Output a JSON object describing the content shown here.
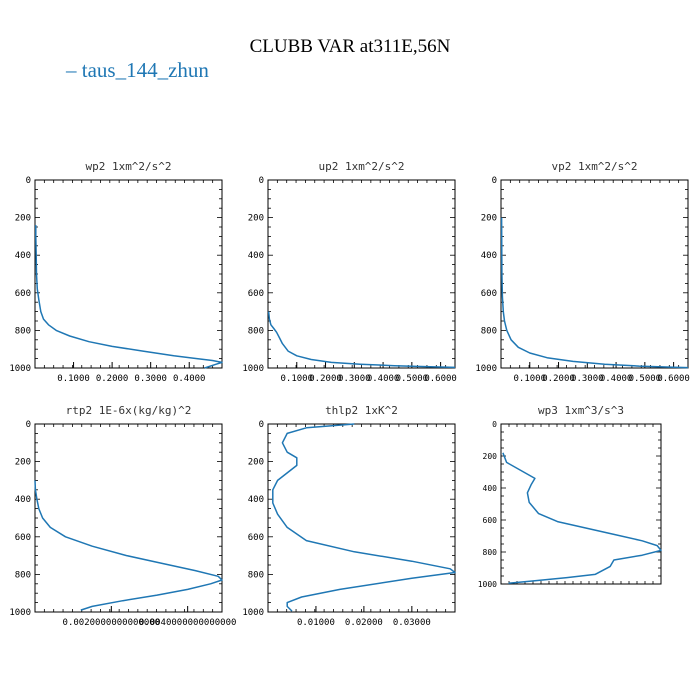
{
  "title": "CLUBB VAR at311E,56N",
  "legend": {
    "symbol": "–",
    "label": "taus_144_zhun"
  },
  "colors": {
    "line": "#1f77b4",
    "axes": "#000000"
  },
  "chart_data": [
    {
      "type": "line",
      "title": "wp2  1xm^2/s^2",
      "series": [
        {
          "name": "taus_144_zhun"
        }
      ],
      "xlim": [
        0.0,
        0.485
      ],
      "ylim": [
        1000,
        0
      ],
      "xticks": [
        0.1,
        0.2,
        0.3,
        0.4
      ],
      "xtick_labels": [
        "0.1000",
        "0.2000",
        "0.3000",
        "0.4000"
      ],
      "yticks": [
        0,
        200,
        400,
        600,
        800,
        1000
      ],
      "ytick_labels": [
        "0",
        "200",
        "400",
        "600",
        "800",
        "1000"
      ],
      "x": [
        0.002,
        0.002,
        0.003,
        0.004,
        0.006,
        0.01,
        0.015,
        0.022,
        0.035,
        0.055,
        0.09,
        0.14,
        0.2,
        0.28,
        0.36,
        0.42,
        0.46,
        0.485,
        0.47,
        0.44
      ],
      "y": [
        240,
        300,
        400,
        500,
        580,
        640,
        700,
        740,
        770,
        800,
        830,
        860,
        885,
        910,
        935,
        950,
        960,
        970,
        980,
        1000
      ]
    },
    {
      "type": "line",
      "title": "up2  1xm^2/s^2",
      "series": [
        {
          "name": "taus_144_zhun"
        }
      ],
      "xlim": [
        0.0,
        0.65
      ],
      "ylim": [
        1000,
        0
      ],
      "xticks": [
        0.1,
        0.2,
        0.3,
        0.4,
        0.5,
        0.6
      ],
      "xtick_labels": [
        "0.1000",
        "0.2000",
        "0.3000",
        "0.4000",
        "0.5000",
        "0.6000"
      ],
      "yticks": [
        0,
        200,
        400,
        600,
        800,
        1000
      ],
      "ytick_labels": [
        "0",
        "200",
        "400",
        "600",
        "800",
        "1000"
      ],
      "x": [
        0.002,
        0.005,
        0.01,
        0.02,
        0.03,
        0.04,
        0.05,
        0.07,
        0.1,
        0.15,
        0.22,
        0.32,
        0.44,
        0.58,
        0.65
      ],
      "y": [
        700,
        740,
        770,
        790,
        810,
        840,
        870,
        910,
        935,
        955,
        970,
        980,
        988,
        994,
        997
      ]
    },
    {
      "type": "line",
      "title": "vp2  1xm^2/s^2",
      "series": [
        {
          "name": "taus_144_zhun"
        }
      ],
      "xlim": [
        0.0,
        0.65
      ],
      "ylim": [
        1000,
        0
      ],
      "xticks": [
        0.1,
        0.2,
        0.3,
        0.4,
        0.5,
        0.6
      ],
      "xtick_labels": [
        "0.1000",
        "0.2000",
        "0.3000",
        "0.4000",
        "0.5000",
        "0.6000"
      ],
      "yticks": [
        0,
        200,
        400,
        600,
        800,
        1000
      ],
      "ytick_labels": [
        "0",
        "200",
        "400",
        "600",
        "800",
        "1000"
      ],
      "x": [
        0.002,
        0.003,
        0.005,
        0.008,
        0.012,
        0.02,
        0.035,
        0.06,
        0.1,
        0.16,
        0.25,
        0.36,
        0.48,
        0.6,
        0.65
      ],
      "y": [
        200,
        500,
        620,
        700,
        750,
        800,
        850,
        890,
        920,
        945,
        965,
        980,
        990,
        996,
        998
      ]
    },
    {
      "type": "line",
      "title": "rtp2  1E-6x(kg/kg)^2",
      "series": [
        {
          "name": "taus_144_zhun"
        }
      ],
      "xlim": [
        0.0,
        4.9e-06
      ],
      "ylim": [
        1000,
        0
      ],
      "xticks": [
        2e-06,
        4e-06
      ],
      "xtick_labels": [
        "0.0020000000000000",
        "0.0040000000000000"
      ],
      "yticks": [
        0,
        200,
        400,
        600,
        800,
        1000
      ],
      "ytick_labels": [
        "0",
        "200",
        "400",
        "600",
        "800",
        "1000"
      ],
      "x": [
        0.0,
        1e-08,
        5e-08,
        1e-07,
        2e-07,
        4e-07,
        8e-07,
        1.5e-06,
        2.4e-06,
        3.3e-06,
        4.2e-06,
        4.8e-06,
        4.9e-06,
        4.6e-06,
        4e-06,
        3.2e-06,
        2.3e-06,
        1.5e-06,
        1.2e-06
      ],
      "y": [
        300,
        350,
        400,
        450,
        500,
        550,
        600,
        650,
        700,
        740,
        780,
        810,
        830,
        850,
        880,
        910,
        940,
        970,
        990
      ]
    },
    {
      "type": "line",
      "title": "thlp2  1xK^2",
      "series": [
        {
          "name": "taus_144_zhun"
        }
      ],
      "xlim": [
        0.0,
        0.039
      ],
      "ylim": [
        1000,
        0
      ],
      "xticks": [
        0.01,
        0.02,
        0.03
      ],
      "xtick_labels": [
        "0.01000",
        "0.02000",
        "0.03000"
      ],
      "yticks": [
        0,
        200,
        400,
        600,
        800,
        1000
      ],
      "ytick_labels": [
        "0",
        "200",
        "400",
        "600",
        "800",
        "1000"
      ],
      "x": [
        0.018,
        0.008,
        0.004,
        0.003,
        0.004,
        0.006,
        0.006,
        0.004,
        0.002,
        0.001,
        0.001,
        0.002,
        0.004,
        0.008,
        0.018,
        0.03,
        0.038,
        0.039,
        0.03,
        0.015,
        0.007,
        0.004,
        0.004,
        0.005
      ],
      "y": [
        0,
        20,
        50,
        100,
        150,
        180,
        220,
        260,
        300,
        350,
        420,
        480,
        550,
        620,
        680,
        730,
        770,
        790,
        820,
        880,
        920,
        950,
        970,
        995
      ]
    },
    {
      "type": "line",
      "title": "wp3  1xm^3/s^3",
      "series": [
        {
          "name": "taus_144_zhun"
        }
      ],
      "xlim": [
        0.0,
        0.0085
      ],
      "ylim": [
        1000,
        0
      ],
      "xticks": [],
      "xtick_labels": [],
      "yticks": [
        0,
        200,
        400,
        600,
        800,
        1000
      ],
      "ytick_labels": [
        "0",
        "200",
        "400",
        "600",
        "800",
        "1000"
      ],
      "x": [
        0.0001,
        0.0003,
        0.0012,
        0.0018,
        0.0016,
        0.0014,
        0.0015,
        0.002,
        0.003,
        0.0045,
        0.006,
        0.0075,
        0.0083,
        0.0085,
        0.0075,
        0.006,
        0.0058,
        0.005,
        0.0035,
        0.0018,
        0.0004
      ],
      "y": [
        180,
        240,
        300,
        340,
        380,
        430,
        490,
        560,
        610,
        650,
        690,
        730,
        760,
        790,
        820,
        850,
        890,
        940,
        960,
        980,
        995
      ]
    }
  ]
}
